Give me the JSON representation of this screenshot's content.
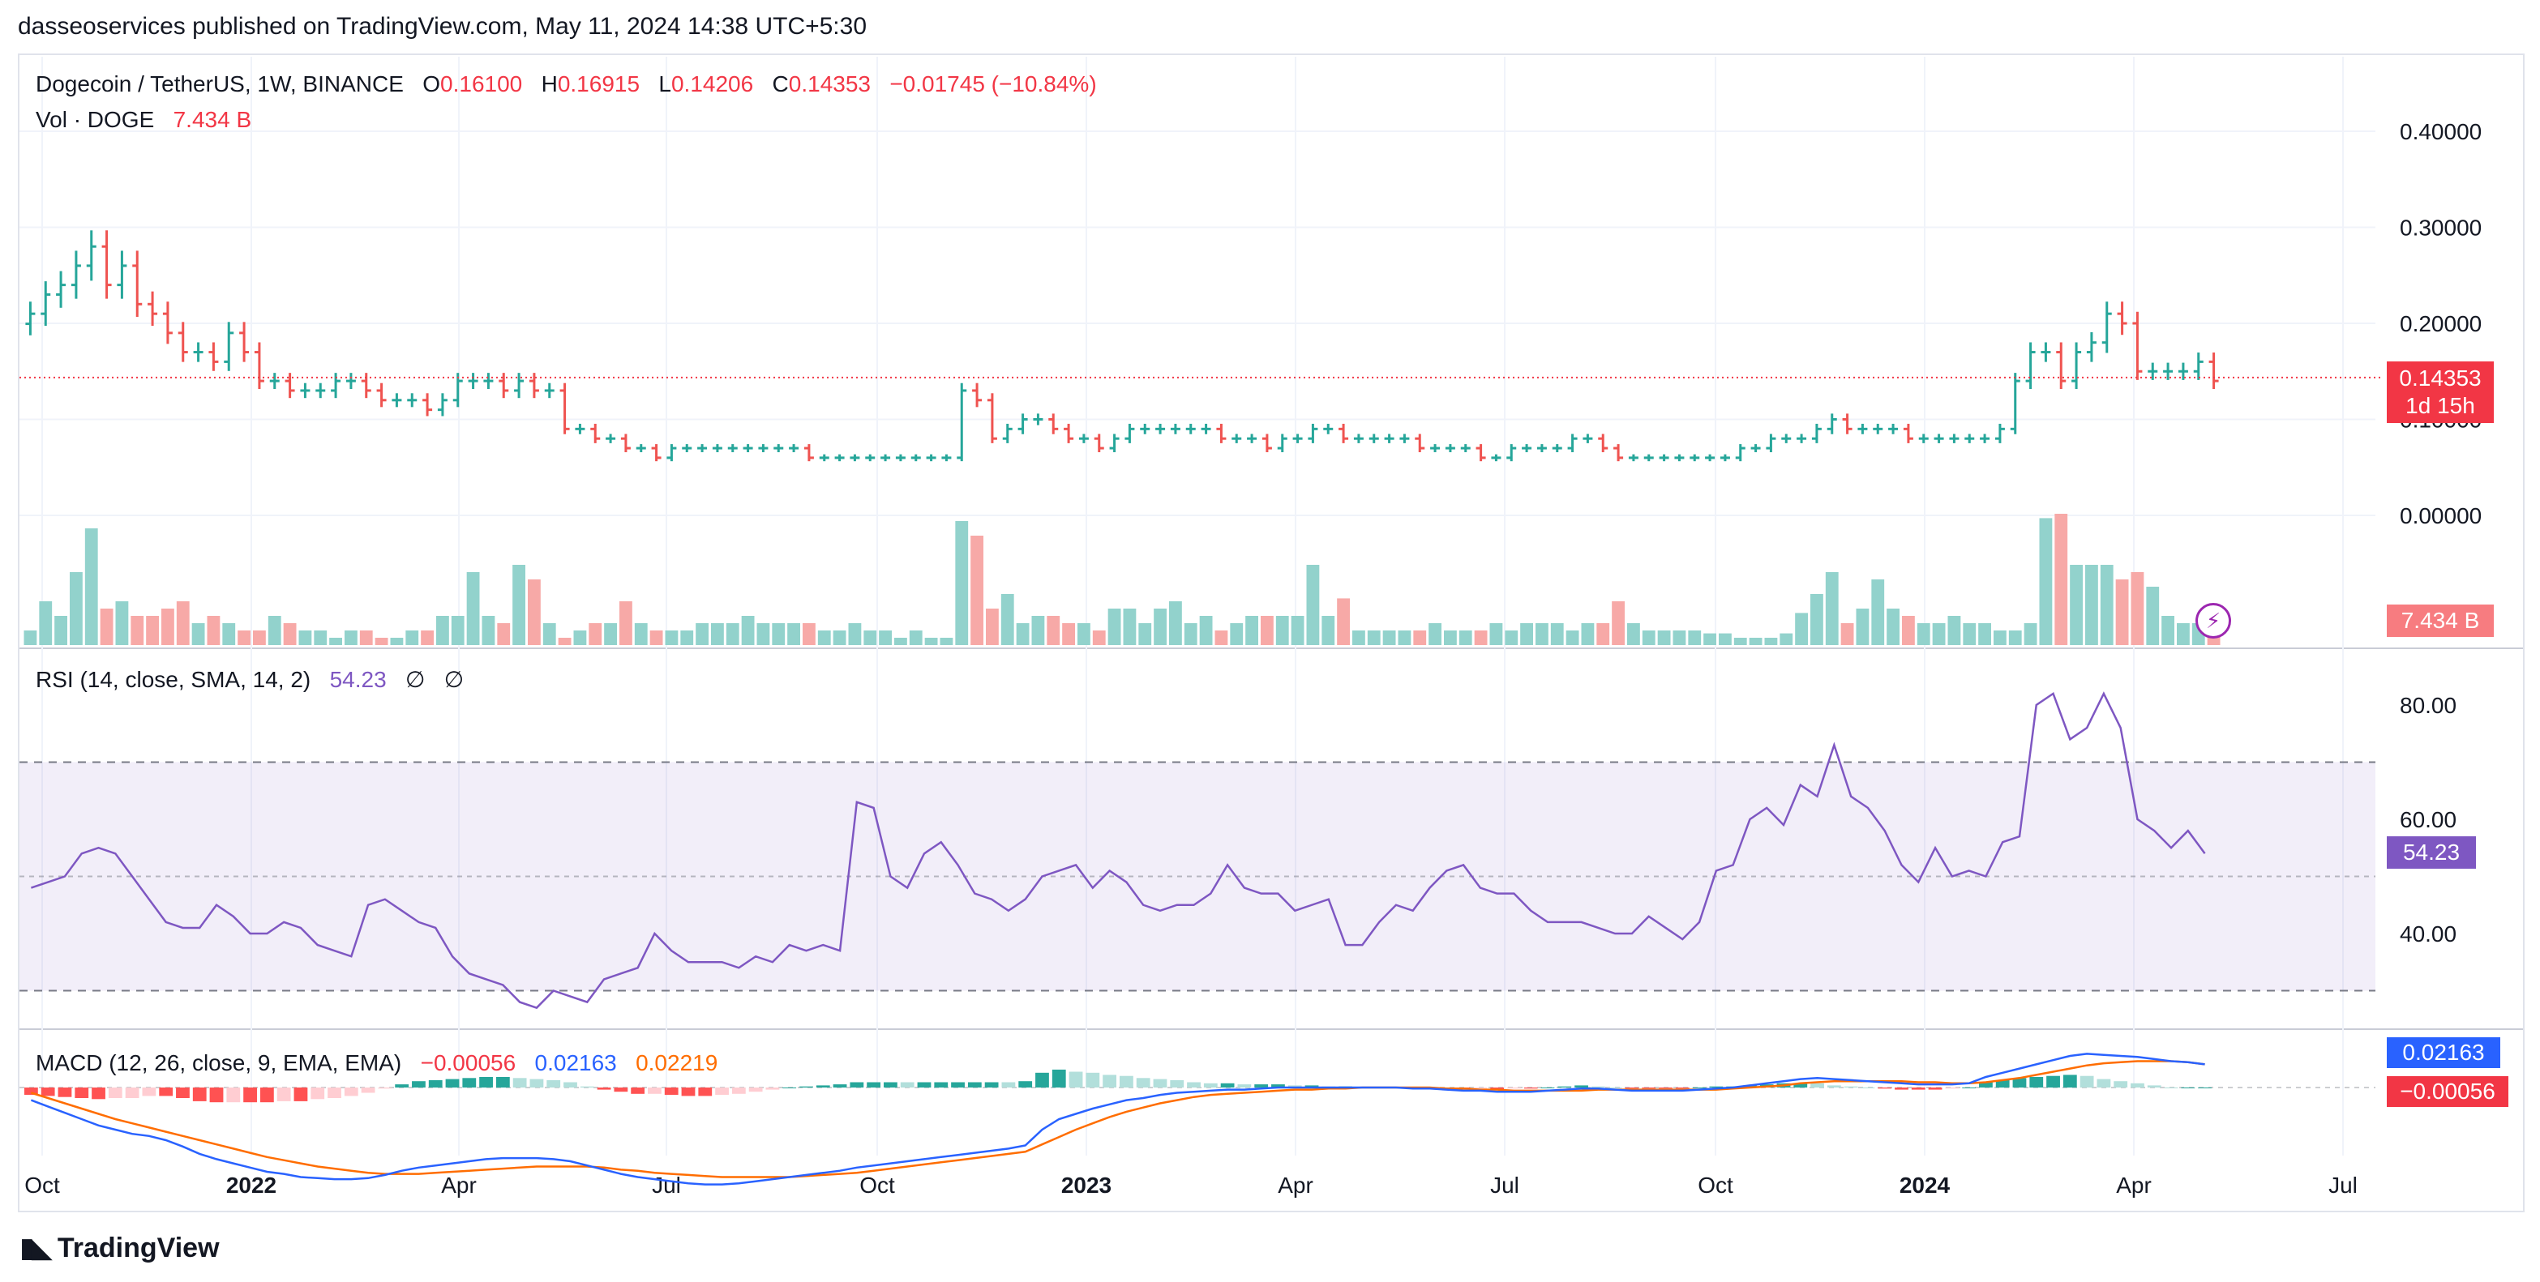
{
  "publisher_line": "dasseoservices published on TradingView.com, May 11, 2024 14:38 UTC+5:30",
  "legend": {
    "symbol": "Dogecoin / TetherUS, 1W, BINANCE",
    "o_label": "O",
    "o_value": "0.16100",
    "h_label": "H",
    "h_value": "0.16915",
    "l_label": "L",
    "l_value": "0.14206",
    "c_label": "C",
    "c_value": "0.14353",
    "change": "−0.01745 (−10.84%)",
    "vol_label": "Vol · DOGE",
    "vol_value": "7.434 B",
    "rsi_label": "RSI (14, close, SMA, 14, 2)",
    "rsi_value": "54.23",
    "rsi_n1": "∅",
    "rsi_n2": "∅",
    "macd_label": "MACD (12, 26, close, 9, EMA, EMA)",
    "macd_hist": "−0.00056",
    "macd_line": "0.02163",
    "macd_signal": "0.02219"
  },
  "badges": {
    "price": "0.14353",
    "countdown": "1d 15h",
    "volume": "7.434 B",
    "rsi": "54.23",
    "macd_line": "0.02163",
    "macd_hist": "−0.00056"
  },
  "footer": {
    "brand": "TradingView",
    "logo_icon": "tradingview-logo-icon"
  },
  "colors": {
    "up": "#26a69a",
    "down": "#ef5350",
    "rsi": "#7e57c2",
    "macd": "#2962ff",
    "signal": "#ff6d00"
  },
  "chart_data": {
    "type": "line",
    "symbol": "DOGEUSDT",
    "timeframe": "1W",
    "x_ticks": [
      "Oct",
      "2022",
      "Apr",
      "Jul",
      "Oct",
      "2023",
      "Apr",
      "Jul",
      "Oct",
      "2024",
      "Apr",
      "Jul"
    ],
    "price_axis": {
      "ticks": [
        "0.40000",
        "0.30000",
        "0.20000",
        "0.10000",
        "0.00000"
      ],
      "last": 0.14353
    },
    "price_close": [
      0.21,
      0.23,
      0.24,
      0.26,
      0.28,
      0.24,
      0.26,
      0.22,
      0.21,
      0.19,
      0.17,
      0.17,
      0.16,
      0.19,
      0.17,
      0.14,
      0.14,
      0.13,
      0.13,
      0.13,
      0.14,
      0.14,
      0.13,
      0.12,
      0.12,
      0.12,
      0.11,
      0.12,
      0.14,
      0.14,
      0.14,
      0.13,
      0.14,
      0.13,
      0.13,
      0.09,
      0.09,
      0.08,
      0.08,
      0.07,
      0.07,
      0.06,
      0.07,
      0.07,
      0.07,
      0.07,
      0.07,
      0.07,
      0.07,
      0.07,
      0.07,
      0.06,
      0.06,
      0.06,
      0.06,
      0.06,
      0.06,
      0.06,
      0.06,
      0.06,
      0.06,
      0.13,
      0.12,
      0.08,
      0.09,
      0.1,
      0.1,
      0.09,
      0.08,
      0.08,
      0.07,
      0.08,
      0.09,
      0.09,
      0.09,
      0.09,
      0.09,
      0.09,
      0.08,
      0.08,
      0.08,
      0.07,
      0.08,
      0.08,
      0.09,
      0.09,
      0.08,
      0.08,
      0.08,
      0.08,
      0.08,
      0.07,
      0.07,
      0.07,
      0.07,
      0.06,
      0.06,
      0.07,
      0.07,
      0.07,
      0.07,
      0.08,
      0.08,
      0.07,
      0.06,
      0.06,
      0.06,
      0.06,
      0.06,
      0.06,
      0.06,
      0.06,
      0.07,
      0.07,
      0.08,
      0.08,
      0.08,
      0.09,
      0.1,
      0.09,
      0.09,
      0.09,
      0.09,
      0.08,
      0.08,
      0.08,
      0.08,
      0.08,
      0.08,
      0.09,
      0.14,
      0.17,
      0.17,
      0.14,
      0.17,
      0.18,
      0.21,
      0.2,
      0.15,
      0.15,
      0.15,
      0.15,
      0.16,
      0.14
    ],
    "volume_up_down": "up_if_close_rises",
    "volume_relative": [
      0.1,
      0.3,
      0.2,
      0.5,
      0.8,
      0.25,
      0.3,
      0.2,
      0.2,
      0.25,
      0.3,
      0.15,
      0.2,
      0.15,
      0.1,
      0.1,
      0.2,
      0.15,
      0.1,
      0.1,
      0.05,
      0.1,
      0.1,
      0.05,
      0.05,
      0.1,
      0.1,
      0.2,
      0.2,
      0.5,
      0.2,
      0.15,
      0.55,
      0.45,
      0.15,
      0.05,
      0.1,
      0.15,
      0.15,
      0.3,
      0.15,
      0.1,
      0.1,
      0.1,
      0.15,
      0.15,
      0.15,
      0.2,
      0.15,
      0.15,
      0.15,
      0.15,
      0.1,
      0.1,
      0.15,
      0.1,
      0.1,
      0.05,
      0.1,
      0.05,
      0.05,
      0.85,
      0.75,
      0.25,
      0.35,
      0.15,
      0.2,
      0.2,
      0.15,
      0.15,
      0.1,
      0.25,
      0.25,
      0.15,
      0.25,
      0.3,
      0.15,
      0.2,
      0.1,
      0.15,
      0.2,
      0.2,
      0.2,
      0.2,
      0.55,
      0.2,
      0.32,
      0.1,
      0.1,
      0.1,
      0.1,
      0.1,
      0.15,
      0.1,
      0.1,
      0.1,
      0.15,
      0.1,
      0.15,
      0.15,
      0.15,
      0.1,
      0.15,
      0.15,
      0.3,
      0.15,
      0.1,
      0.1,
      0.1,
      0.1,
      0.08,
      0.08,
      0.05,
      0.05,
      0.05,
      0.08,
      0.22,
      0.35,
      0.5,
      0.15,
      0.25,
      0.45,
      0.25,
      0.2,
      0.15,
      0.15,
      0.2,
      0.15,
      0.15,
      0.1,
      0.1,
      0.15,
      0.87,
      0.9,
      0.55,
      0.55,
      0.55,
      0.45,
      0.5,
      0.4,
      0.2,
      0.15,
      0.15,
      0.1
    ],
    "rsi_axis": {
      "ticks": [
        "80.00",
        "60.00",
        "40.00"
      ],
      "upper": 70,
      "middle": 50,
      "lower": 30
    },
    "rsi": [
      48,
      49,
      50,
      54,
      55,
      54,
      50,
      46,
      42,
      41,
      41,
      45,
      43,
      40,
      40,
      42,
      41,
      38,
      37,
      36,
      45,
      46,
      44,
      42,
      41,
      36,
      33,
      32,
      31,
      28,
      27,
      30,
      29,
      28,
      32,
      33,
      34,
      40,
      37,
      35,
      35,
      35,
      34,
      36,
      35,
      38,
      37,
      38,
      37,
      63,
      62,
      50,
      48,
      54,
      56,
      52,
      47,
      46,
      44,
      46,
      50,
      51,
      52,
      48,
      51,
      49,
      45,
      44,
      45,
      45,
      47,
      52,
      48,
      47,
      47,
      44,
      45,
      46,
      38,
      38,
      42,
      45,
      44,
      48,
      51,
      52,
      48,
      47,
      47,
      44,
      42,
      42,
      42,
      41,
      40,
      40,
      43,
      41,
      39,
      42,
      51,
      52,
      60,
      62,
      59,
      66,
      64,
      73,
      64,
      62,
      58,
      52,
      49,
      55,
      50,
      51,
      50,
      56,
      57,
      80,
      82,
      74,
      76,
      82,
      76,
      60,
      58,
      55,
      58,
      54
    ],
    "macd_axis": {
      "badges": [
        "0.02163",
        "−0.00056"
      ]
    },
    "macd_line": [
      -0.012,
      -0.018,
      -0.024,
      -0.03,
      -0.036,
      -0.04,
      -0.044,
      -0.046,
      -0.05,
      -0.056,
      -0.063,
      -0.068,
      -0.072,
      -0.076,
      -0.08,
      -0.082,
      -0.085,
      -0.086,
      -0.087,
      -0.087,
      -0.086,
      -0.083,
      -0.079,
      -0.076,
      -0.074,
      -0.072,
      -0.07,
      -0.068,
      -0.067,
      -0.067,
      -0.067,
      -0.068,
      -0.07,
      -0.074,
      -0.078,
      -0.082,
      -0.085,
      -0.087,
      -0.089,
      -0.091,
      -0.092,
      -0.092,
      -0.091,
      -0.089,
      -0.087,
      -0.085,
      -0.083,
      -0.081,
      -0.079,
      -0.076,
      -0.074,
      -0.072,
      -0.07,
      -0.068,
      -0.066,
      -0.064,
      -0.062,
      -0.06,
      -0.058,
      -0.055,
      -0.04,
      -0.03,
      -0.025,
      -0.02,
      -0.016,
      -0.012,
      -0.01,
      -0.007,
      -0.005,
      -0.004,
      -0.003,
      -0.002,
      -0.002,
      -0.001,
      0,
      0,
      0,
      0,
      0,
      0,
      0,
      0,
      -0.001,
      -0.001,
      -0.002,
      -0.003,
      -0.003,
      -0.004,
      -0.004,
      -0.004,
      -0.003,
      -0.002,
      -0.001,
      -0.001,
      -0.002,
      -0.003,
      -0.003,
      -0.003,
      -0.003,
      -0.002,
      -0.001,
      0,
      0.002,
      0.004,
      0.006,
      0.008,
      0.009,
      0.008,
      0.007,
      0.006,
      0.005,
      0.004,
      0.003,
      0.003,
      0.003,
      0.004,
      0.01,
      0.014,
      0.018,
      0.022,
      0.026,
      0.03,
      0.032,
      0.031,
      0.03,
      0.029,
      0.027,
      0.025,
      0.024,
      0.022
    ],
    "macd_signal": [
      -0.005,
      -0.01,
      -0.015,
      -0.02,
      -0.025,
      -0.03,
      -0.034,
      -0.038,
      -0.042,
      -0.046,
      -0.05,
      -0.054,
      -0.058,
      -0.062,
      -0.066,
      -0.069,
      -0.072,
      -0.075,
      -0.077,
      -0.079,
      -0.081,
      -0.082,
      -0.082,
      -0.082,
      -0.081,
      -0.08,
      -0.079,
      -0.078,
      -0.077,
      -0.076,
      -0.075,
      -0.075,
      -0.075,
      -0.075,
      -0.076,
      -0.078,
      -0.079,
      -0.081,
      -0.082,
      -0.083,
      -0.084,
      -0.085,
      -0.085,
      -0.085,
      -0.085,
      -0.085,
      -0.084,
      -0.083,
      -0.082,
      -0.081,
      -0.079,
      -0.077,
      -0.075,
      -0.073,
      -0.071,
      -0.069,
      -0.067,
      -0.065,
      -0.063,
      -0.061,
      -0.054,
      -0.047,
      -0.04,
      -0.034,
      -0.028,
      -0.023,
      -0.019,
      -0.015,
      -0.012,
      -0.009,
      -0.007,
      -0.006,
      -0.005,
      -0.004,
      -0.003,
      -0.002,
      -0.002,
      -0.001,
      -0.001,
      0,
      0,
      0,
      0,
      0,
      -0.001,
      -0.001,
      -0.002,
      -0.002,
      -0.003,
      -0.003,
      -0.003,
      -0.003,
      -0.003,
      -0.002,
      -0.002,
      -0.002,
      -0.002,
      -0.002,
      -0.002,
      -0.002,
      -0.002,
      -0.001,
      0,
      0.001,
      0.002,
      0.004,
      0.005,
      0.006,
      0.006,
      0.006,
      0.006,
      0.006,
      0.005,
      0.005,
      0.004,
      0.004,
      0.005,
      0.007,
      0.009,
      0.012,
      0.015,
      0.018,
      0.021,
      0.023,
      0.024,
      0.025,
      0.025,
      0.025,
      0.024,
      0.022
    ]
  }
}
